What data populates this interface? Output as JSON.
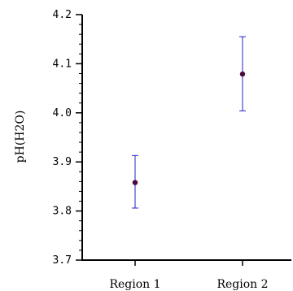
{
  "chart_data": {
    "type": "scatter",
    "title": "",
    "xlabel": "",
    "ylabel": "pH(H2O)",
    "categories": [
      "Region 1",
      "Region 2"
    ],
    "y": [
      3.858,
      4.079
    ],
    "error_low": [
      3.806,
      4.004
    ],
    "error_high": [
      3.913,
      4.155
    ],
    "ylim": [
      3.7,
      4.2
    ],
    "yticks": [
      "3.7",
      "3.8",
      "3.9",
      "4.0",
      "4.1",
      "4.2"
    ],
    "grid": false,
    "legend": "none",
    "marker_color": "#4b0a3c",
    "error_bar_color": "#2222cc",
    "axis_color": "#000000"
  }
}
